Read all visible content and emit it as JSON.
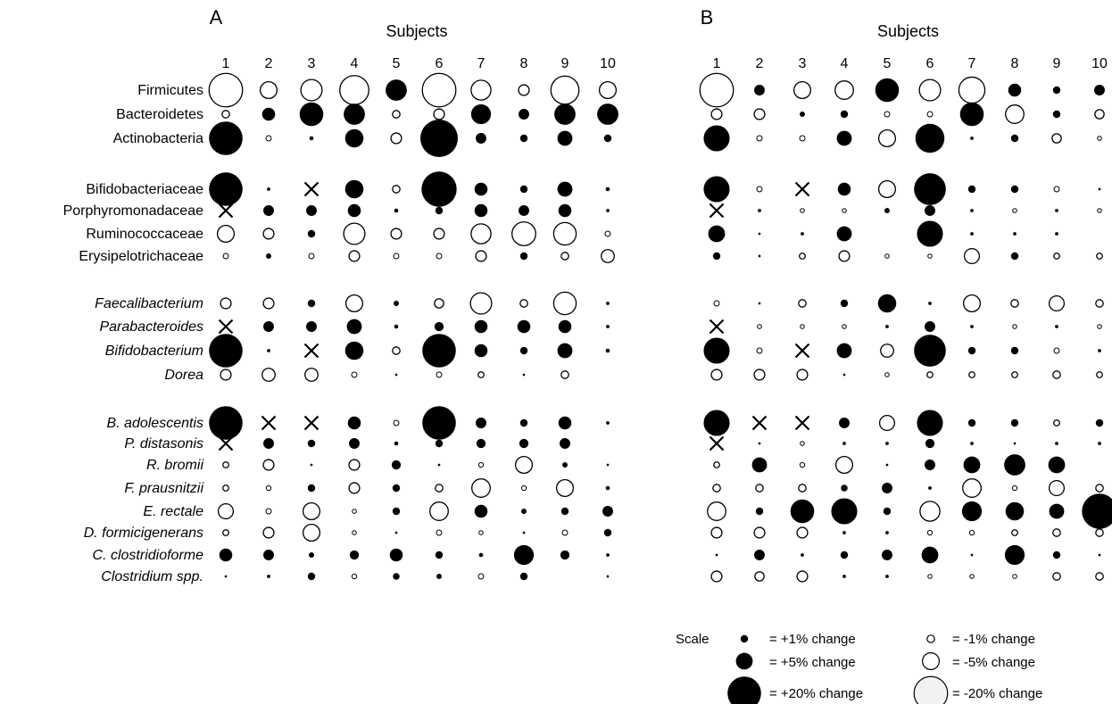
{
  "chart_data": {
    "type": "bubble-matrix",
    "subjects_title": "Subjects",
    "subjects": [
      "1",
      "2",
      "3",
      "4",
      "5",
      "6",
      "7",
      "8",
      "9",
      "10"
    ],
    "groups": [
      {
        "rows": [
          "Firmicutes",
          "Bacteroidetes",
          "Actinobacteria"
        ],
        "italic": false
      },
      {
        "rows": [
          "Bifidobacteriaceae",
          "Porphyromonadaceae",
          "Ruminococcaceae",
          "Erysipelotrichaceae"
        ],
        "italic": false
      },
      {
        "rows": [
          "Faecalibacterium",
          "Parabacteroides",
          "Bifidobacterium",
          "Dorea"
        ],
        "italic": true
      },
      {
        "rows": [
          "B. adolescentis",
          "P. distasonis",
          "R.  bromii",
          "F. prausnitzii",
          "E. rectale",
          "D. formicigenerans",
          "C. clostridioforme",
          "Clostridium spp."
        ],
        "italic": true
      }
    ],
    "encoding": "positive values = filled circle (increase), negative values = open circle (decrease), null = no change shown, 'X' = cross marker",
    "panels": [
      {
        "label": "A",
        "values": [
          [
            -20,
            -5,
            -8,
            -15,
            8,
            -20,
            -7,
            -2,
            -14,
            -5
          ],
          [
            -1,
            3,
            10,
            8,
            -1,
            -2,
            7,
            2,
            8,
            8
          ],
          [
            20,
            -0.5,
            0.3,
            6,
            -2,
            25,
            2,
            1,
            4,
            1
          ],
          [
            20,
            0.2,
            "X",
            6,
            -1,
            22,
            3,
            1,
            4,
            0.3
          ],
          [
            "X",
            2,
            2,
            3,
            0.3,
            1,
            3,
            2,
            3,
            0.2
          ],
          [
            -5,
            -2,
            1,
            -8,
            -2,
            -2,
            -7,
            -10,
            -9,
            -0.5
          ],
          [
            -0.5,
            0.5,
            -0.5,
            -2,
            -0.5,
            -0.5,
            -2,
            1,
            -1,
            -3
          ],
          [
            -2,
            -2,
            1,
            -5,
            0.5,
            -1.5,
            -8,
            -1,
            -9,
            0.2
          ],
          [
            "X",
            2,
            2,
            4,
            0.3,
            1.5,
            3,
            3,
            3,
            0.2
          ],
          [
            20,
            0.2,
            "X",
            6,
            -1,
            20,
            3,
            1,
            4,
            0.3
          ],
          [
            -2,
            -3,
            -3,
            -0.5,
            0.1,
            -0.5,
            -0.6,
            0.1,
            -1,
            null
          ],
          [
            20,
            "X",
            "X",
            3,
            -0.5,
            20,
            2,
            1,
            3,
            0.2
          ],
          [
            "X",
            2,
            1,
            2,
            0.3,
            1,
            1.5,
            1.5,
            2,
            null
          ],
          [
            -0.6,
            -2,
            0.1,
            -2,
            1.5,
            0.1,
            -0.4,
            -5,
            0.5,
            0.1
          ],
          [
            -0.6,
            -0.4,
            1,
            -2,
            1,
            -1,
            -6,
            -0.4,
            -5,
            0.3
          ],
          [
            -4,
            -0.5,
            -5,
            -0.3,
            1,
            -6,
            3,
            0.5,
            1,
            2
          ],
          [
            -0.6,
            -2,
            -5,
            -0.3,
            0.1,
            -0.5,
            -0.3,
            0.1,
            -0.5,
            1
          ],
          [
            3,
            2,
            0.5,
            1.5,
            3,
            1,
            0.3,
            7,
            1.5,
            0.2
          ],
          [
            0.1,
            0.2,
            1,
            -0.4,
            0.8,
            0.5,
            -0.5,
            1,
            null,
            0.1
          ]
        ]
      },
      {
        "label": "B",
        "values": [
          [
            -20,
            2,
            -5,
            -6,
            10,
            -8,
            -12,
            3,
            1,
            2
          ],
          [
            -2,
            -2,
            0.5,
            1,
            -0.5,
            -0.5,
            10,
            -6,
            1,
            -1.5
          ],
          [
            12,
            -0.5,
            -0.5,
            4,
            -5,
            15,
            0.2,
            1,
            -1.5,
            -0.3
          ],
          [
            12,
            -0.5,
            "X",
            3,
            -5,
            18,
            1,
            1,
            -0.5,
            0.1
          ],
          [
            "X",
            0.2,
            -0.3,
            -0.3,
            0.5,
            2,
            0.2,
            -0.3,
            0.2,
            -0.3
          ],
          [
            5,
            0.1,
            0.2,
            4,
            null,
            12,
            0.2,
            0.2,
            0.2,
            null
          ],
          [
            1,
            0.1,
            -0.6,
            -2,
            -0.3,
            -0.3,
            -4,
            1,
            -0.6,
            -0.6
          ],
          [
            -0.5,
            0.1,
            -1,
            1,
            6,
            0.2,
            -5,
            -1,
            -4,
            -1
          ],
          [
            "X",
            -0.3,
            -0.3,
            -0.3,
            0.2,
            2,
            0.2,
            -0.3,
            0.2,
            -0.3
          ],
          [
            12,
            -0.5,
            "X",
            4,
            -3,
            18,
            1,
            1,
            -0.5,
            0.2
          ],
          [
            -2,
            -2,
            -2,
            0.1,
            -0.3,
            -0.6,
            -0.6,
            -0.6,
            -1,
            -0.6
          ],
          [
            12,
            "X",
            "X",
            2,
            -4,
            12,
            1,
            1,
            -0.6,
            1
          ],
          [
            "X",
            0.1,
            -0.3,
            0.2,
            0.2,
            1.5,
            0.2,
            0.1,
            0.2,
            0.2
          ],
          [
            -0.6,
            4,
            -0.4,
            -5,
            0.1,
            2,
            5,
            8,
            5,
            null
          ],
          [
            -1,
            -1,
            -1,
            0.8,
            2,
            0.2,
            -6,
            -0.4,
            -4,
            -1
          ],
          [
            -6,
            1,
            10,
            12,
            1,
            -7,
            7,
            6,
            4,
            22
          ],
          [
            -2,
            -2,
            -2,
            0.2,
            0.2,
            -0.4,
            -0.4,
            -0.6,
            -1,
            -1
          ],
          [
            0.1,
            2,
            0.2,
            1,
            2,
            5,
            0.1,
            7,
            1,
            0.1
          ],
          [
            -2,
            -1.5,
            -2,
            0.2,
            0.2,
            -0.3,
            -0.3,
            -0.3,
            -1,
            -1
          ]
        ]
      }
    ],
    "scale": {
      "label": "Scale",
      "items": [
        {
          "value": 1,
          "text": "= +1% change"
        },
        {
          "value": 5,
          "text": "= +5% change"
        },
        {
          "value": 20,
          "text": "= +20% change"
        },
        {
          "value": -1,
          "text": "= -1% change"
        },
        {
          "value": -5,
          "text": "= -5% change"
        },
        {
          "value": -20,
          "text": "= -20% change"
        }
      ]
    }
  }
}
